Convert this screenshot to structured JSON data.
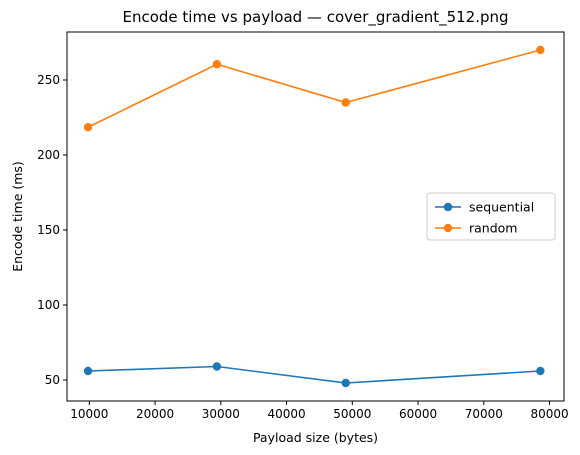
{
  "chart_data": {
    "type": "line",
    "title": "Encode time vs payload — cover_gradient_512.png",
    "xlabel": "Payload size (bytes)",
    "ylabel": "Encode time (ms)",
    "xlim": [
      6600,
      82200
    ],
    "ylim": [
      36,
      282
    ],
    "xticks": [
      10000,
      20000,
      30000,
      40000,
      50000,
      60000,
      70000,
      80000
    ],
    "yticks": [
      50,
      100,
      150,
      200,
      250
    ],
    "grid": false,
    "legend_position": "center-right",
    "series": [
      {
        "name": "sequential",
        "color": "#1f77b4",
        "x": [
          9800,
          29400,
          49000,
          78600
        ],
        "y": [
          56,
          59,
          48,
          56
        ]
      },
      {
        "name": "random",
        "color": "#ff7f0e",
        "x": [
          9800,
          29400,
          49000,
          78600
        ],
        "y": [
          218.5,
          260.5,
          235,
          270
        ]
      }
    ]
  }
}
